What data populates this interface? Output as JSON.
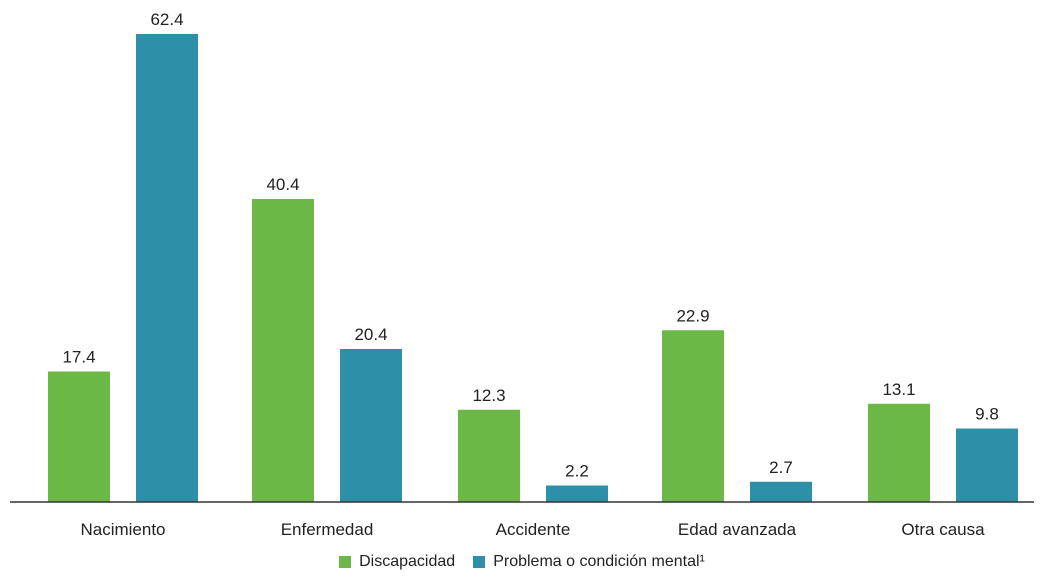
{
  "chart_data": {
    "type": "bar",
    "title": "",
    "xlabel": "",
    "ylabel": "",
    "categories": [
      "Nacimiento",
      "Enfermedad",
      "Accidente",
      "Edad avanzada",
      "Otra causa"
    ],
    "series": [
      {
        "name": "Discapacidad",
        "color": "#6cb846",
        "values": [
          17.4,
          40.4,
          12.3,
          22.9,
          13.1
        ]
      },
      {
        "name": "Problema o condición mental¹",
        "color": "#2e8fa8",
        "values": [
          62.4,
          20.4,
          2.2,
          2.7,
          9.8
        ]
      }
    ],
    "value_labels": [
      [
        "17.4",
        "40.4",
        "12.3",
        "22.9",
        "13.1"
      ],
      [
        "62.4",
        "20.4",
        "2.2",
        "2.7",
        "9.8"
      ]
    ],
    "ylim": [
      0,
      62.4
    ],
    "grid": false,
    "legend_position": "bottom-center"
  }
}
